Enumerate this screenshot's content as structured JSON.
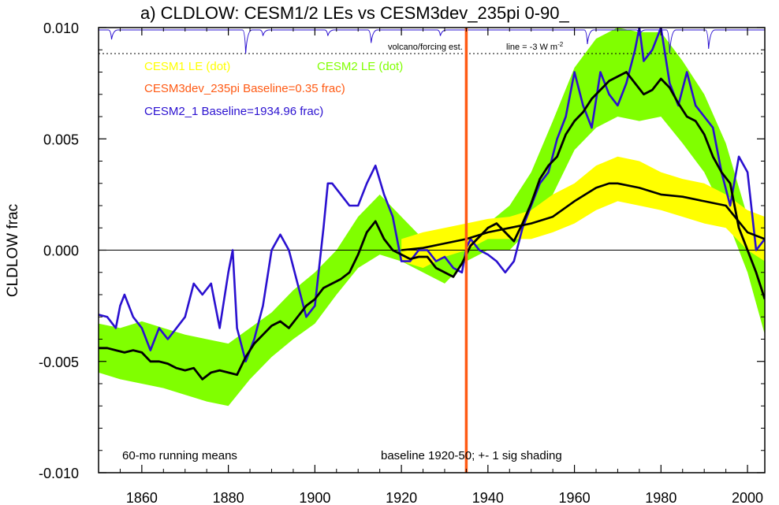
{
  "chart_data": {
    "type": "line",
    "title": "a) CLDLOW: CESM1/2 LEs vs CESM3dev_235pi 0-90_",
    "ylabel": "CLDLOW frac",
    "xlabel": "",
    "xlim": [
      1850,
      2004
    ],
    "ylim": [
      -0.01,
      0.01
    ],
    "xticks": [
      1860,
      1880,
      1900,
      1920,
      1940,
      1960,
      1980,
      2000
    ],
    "xtick_labels": [
      "1860",
      "1880",
      "1900",
      "1920",
      "1940",
      "1960",
      "1980",
      "2000"
    ],
    "yticks": [
      -0.01,
      -0.005,
      0.0,
      0.005,
      0.01
    ],
    "ytick_labels": [
      "-0.010",
      "-0.005",
      "0.000",
      "0.005",
      "0.010"
    ],
    "legend": {
      "cesm1": "CESM1 LE (dot)",
      "cesm2": "CESM2 LE (dot)",
      "cesm3": "CESM3dev_235pi Baseline=0.35 frac)",
      "cesm2_1": "CESM2_1 Baseline=1934.96 frac)"
    },
    "annotations": {
      "volcano": "volcano/forcing est.",
      "line_scale": "line = -3 W m",
      "line_scale_sup": "-2",
      "running_means": "60-mo running means",
      "baseline": "baseline 1920-50; +- 1 sig shading"
    },
    "colors": {
      "cesm1": "#ffff00",
      "cesm2": "#80ff00",
      "cesm3": "#ff5a14",
      "cesm2_1": "#2a10d0",
      "mean": "#000000"
    },
    "vertical_line_x": 1935,
    "volcano_dips": [
      [
        1853,
        0.4
      ],
      [
        1884,
        1.0
      ],
      [
        1888,
        0.25
      ],
      [
        1903,
        0.25
      ],
      [
        1913,
        0.55
      ],
      [
        1929,
        0.25
      ],
      [
        1963,
        0.6
      ],
      [
        1975,
        0.25
      ],
      [
        1982,
        1.0
      ],
      [
        1991,
        0.8
      ]
    ],
    "series": [
      {
        "name": "CESM2 LE ensemble band (+-1 sig)",
        "kind": "band",
        "color": "#80ff00",
        "x": [
          1850,
          1855,
          1860,
          1865,
          1870,
          1875,
          1880,
          1885,
          1890,
          1895,
          1900,
          1905,
          1910,
          1915,
          1920,
          1925,
          1930,
          1935,
          1940,
          1945,
          1950,
          1955,
          1960,
          1965,
          1970,
          1975,
          1980,
          1985,
          1990,
          1995,
          2000,
          2004
        ],
        "lower": [
          -0.0055,
          -0.0058,
          -0.006,
          -0.0062,
          -0.0065,
          -0.0068,
          -0.007,
          -0.0058,
          -0.0048,
          -0.004,
          -0.0033,
          -0.002,
          -0.0008,
          -0.0002,
          -0.0005,
          -0.001,
          -0.0015,
          -0.0005,
          0.0,
          0.0,
          0.001,
          0.0025,
          0.0045,
          0.0055,
          0.006,
          0.0058,
          0.006,
          0.0048,
          0.0035,
          0.0015,
          -0.001,
          -0.0038
        ],
        "upper": [
          -0.0033,
          -0.0035,
          -0.0032,
          -0.0035,
          -0.0038,
          -0.004,
          -0.0042,
          -0.0035,
          -0.0028,
          -0.0018,
          -0.001,
          0.0,
          0.0015,
          0.0025,
          0.0015,
          0.0005,
          -0.0003,
          0.0008,
          0.0012,
          0.002,
          0.0035,
          0.0058,
          0.0082,
          0.0095,
          0.01,
          0.0098,
          0.0098,
          0.0085,
          0.007,
          0.0048,
          0.0015,
          -0.0005
        ]
      },
      {
        "name": "CESM1 LE ensemble band (+-1 sig)",
        "kind": "band",
        "color": "#ffff00",
        "x": [
          1920,
          1925,
          1930,
          1935,
          1940,
          1945,
          1950,
          1955,
          1960,
          1965,
          1970,
          1975,
          1980,
          1985,
          1990,
          1995,
          2000,
          2004
        ],
        "lower": [
          -0.0005,
          -0.0008,
          -0.0003,
          0.0,
          0.0005,
          0.0005,
          0.0005,
          0.0008,
          0.0012,
          0.0018,
          0.0022,
          0.002,
          0.0018,
          0.0015,
          0.0012,
          0.001,
          0.0,
          -0.0005
        ],
        "upper": [
          0.0005,
          0.0008,
          0.001,
          0.0012,
          0.0014,
          0.0015,
          0.0018,
          0.0025,
          0.003,
          0.0038,
          0.0042,
          0.004,
          0.0035,
          0.0032,
          0.003,
          0.0025,
          0.0018,
          0.0015
        ]
      },
      {
        "name": "CESM2_1",
        "kind": "line",
        "color": "#2a10d0",
        "width": 2.6,
        "x": [
          1850,
          1852,
          1854,
          1855,
          1856,
          1858,
          1860,
          1862,
          1864,
          1866,
          1868,
          1870,
          1872,
          1874,
          1876,
          1878,
          1880,
          1881,
          1882,
          1884,
          1886,
          1888,
          1890,
          1892,
          1894,
          1896,
          1898,
          1900,
          1902,
          1903,
          1904,
          1906,
          1908,
          1910,
          1912,
          1914,
          1916,
          1918,
          1919,
          1920,
          1922,
          1924,
          1926,
          1928,
          1930,
          1932,
          1934,
          1935,
          1936,
          1938,
          1940,
          1942,
          1944,
          1946,
          1948,
          1950,
          1952,
          1954,
          1956,
          1958,
          1960,
          1962,
          1964,
          1966,
          1968,
          1970,
          1972,
          1974,
          1975,
          1976,
          1978,
          1980,
          1982,
          1984,
          1986,
          1988,
          1990,
          1992,
          1994,
          1996,
          1998,
          2000,
          2002,
          2004
        ],
        "y": [
          -0.0029,
          -0.003,
          -0.0035,
          -0.0025,
          -0.002,
          -0.003,
          -0.0035,
          -0.0045,
          -0.0035,
          -0.004,
          -0.0035,
          -0.003,
          -0.0015,
          -0.002,
          -0.0015,
          -0.0035,
          -0.001,
          0.0,
          -0.0035,
          -0.005,
          -0.004,
          -0.0025,
          0.0,
          0.0007,
          0.0,
          -0.0015,
          -0.003,
          -0.0025,
          0.001,
          0.003,
          0.003,
          0.0025,
          0.002,
          0.002,
          0.003,
          0.0038,
          0.0025,
          0.0015,
          0.0005,
          -0.0005,
          -0.0005,
          0.0,
          0.0,
          -0.0005,
          -0.0003,
          -0.0008,
          -0.001,
          0.0001,
          0.0005,
          0.0,
          -0.0002,
          -0.0005,
          -0.001,
          -0.0005,
          0.001,
          0.002,
          0.003,
          0.0035,
          0.005,
          0.006,
          0.008,
          0.0065,
          0.0055,
          0.008,
          0.007,
          0.0065,
          0.0075,
          0.009,
          0.01,
          0.0085,
          0.009,
          0.01,
          0.0075,
          0.0065,
          0.008,
          0.0065,
          0.006,
          0.0055,
          0.0035,
          0.002,
          0.0042,
          0.0035,
          0.0,
          0.0005
        ]
      },
      {
        "name": "CESM3dev_235pi (ensemble mean)",
        "kind": "line",
        "color": "#000000",
        "width": 2.8,
        "x": [
          1850,
          1852,
          1854,
          1856,
          1858,
          1860,
          1862,
          1864,
          1866,
          1868,
          1870,
          1872,
          1874,
          1876,
          1878,
          1880,
          1882,
          1884,
          1886,
          1888,
          1890,
          1892,
          1894,
          1896,
          1898,
          1900,
          1902,
          1904,
          1906,
          1908,
          1910,
          1912,
          1914,
          1916,
          1918,
          1920,
          1922,
          1924,
          1926,
          1928,
          1930,
          1932,
          1934,
          1936,
          1938,
          1940,
          1942,
          1944,
          1946,
          1948,
          1950,
          1952,
          1954,
          1956,
          1958,
          1960,
          1962,
          1964,
          1966,
          1968,
          1970,
          1972,
          1974,
          1976,
          1978,
          1980,
          1982,
          1984,
          1986,
          1988,
          1990,
          1992,
          1994,
          1996,
          1998,
          2000,
          2002,
          2004
        ],
        "y": [
          -0.0044,
          -0.0044,
          -0.0045,
          -0.0046,
          -0.0045,
          -0.0046,
          -0.005,
          -0.005,
          -0.0051,
          -0.0053,
          -0.0054,
          -0.0053,
          -0.0058,
          -0.0055,
          -0.0054,
          -0.0055,
          -0.0056,
          -0.0048,
          -0.0042,
          -0.0038,
          -0.0034,
          -0.0032,
          -0.0035,
          -0.003,
          -0.0025,
          -0.0022,
          -0.0017,
          -0.0015,
          -0.0013,
          -0.001,
          -0.0002,
          0.0008,
          0.0013,
          0.0005,
          0.0,
          -0.0002,
          -0.0004,
          -0.0003,
          -0.0003,
          -0.0008,
          -0.001,
          -0.0012,
          -0.0006,
          0.0002,
          0.0006,
          0.001,
          0.0012,
          0.0008,
          0.0004,
          0.0012,
          0.0021,
          0.0032,
          0.0038,
          0.0042,
          0.0052,
          0.0058,
          0.0062,
          0.0068,
          0.0072,
          0.0076,
          0.0078,
          0.008,
          0.0075,
          0.007,
          0.0072,
          0.0077,
          0.0073,
          0.0066,
          0.006,
          0.0058,
          0.0052,
          0.0042,
          0.0035,
          0.003,
          0.001,
          0.0,
          -0.001,
          -0.0022
        ]
      },
      {
        "name": "CESM1 LE (ensemble mean)",
        "kind": "line",
        "color": "#000000",
        "width": 2.6,
        "x": [
          1920,
          1925,
          1930,
          1935,
          1940,
          1945,
          1950,
          1955,
          1960,
          1965,
          1968,
          1970,
          1975,
          1980,
          1985,
          1990,
          1995,
          2000,
          2004
        ],
        "y": [
          0.0,
          0.0001,
          0.0003,
          0.0005,
          0.0008,
          0.001,
          0.0012,
          0.0015,
          0.0022,
          0.0028,
          0.003,
          0.003,
          0.0028,
          0.0025,
          0.0024,
          0.0022,
          0.002,
          0.0008,
          0.0005
        ]
      }
    ]
  }
}
